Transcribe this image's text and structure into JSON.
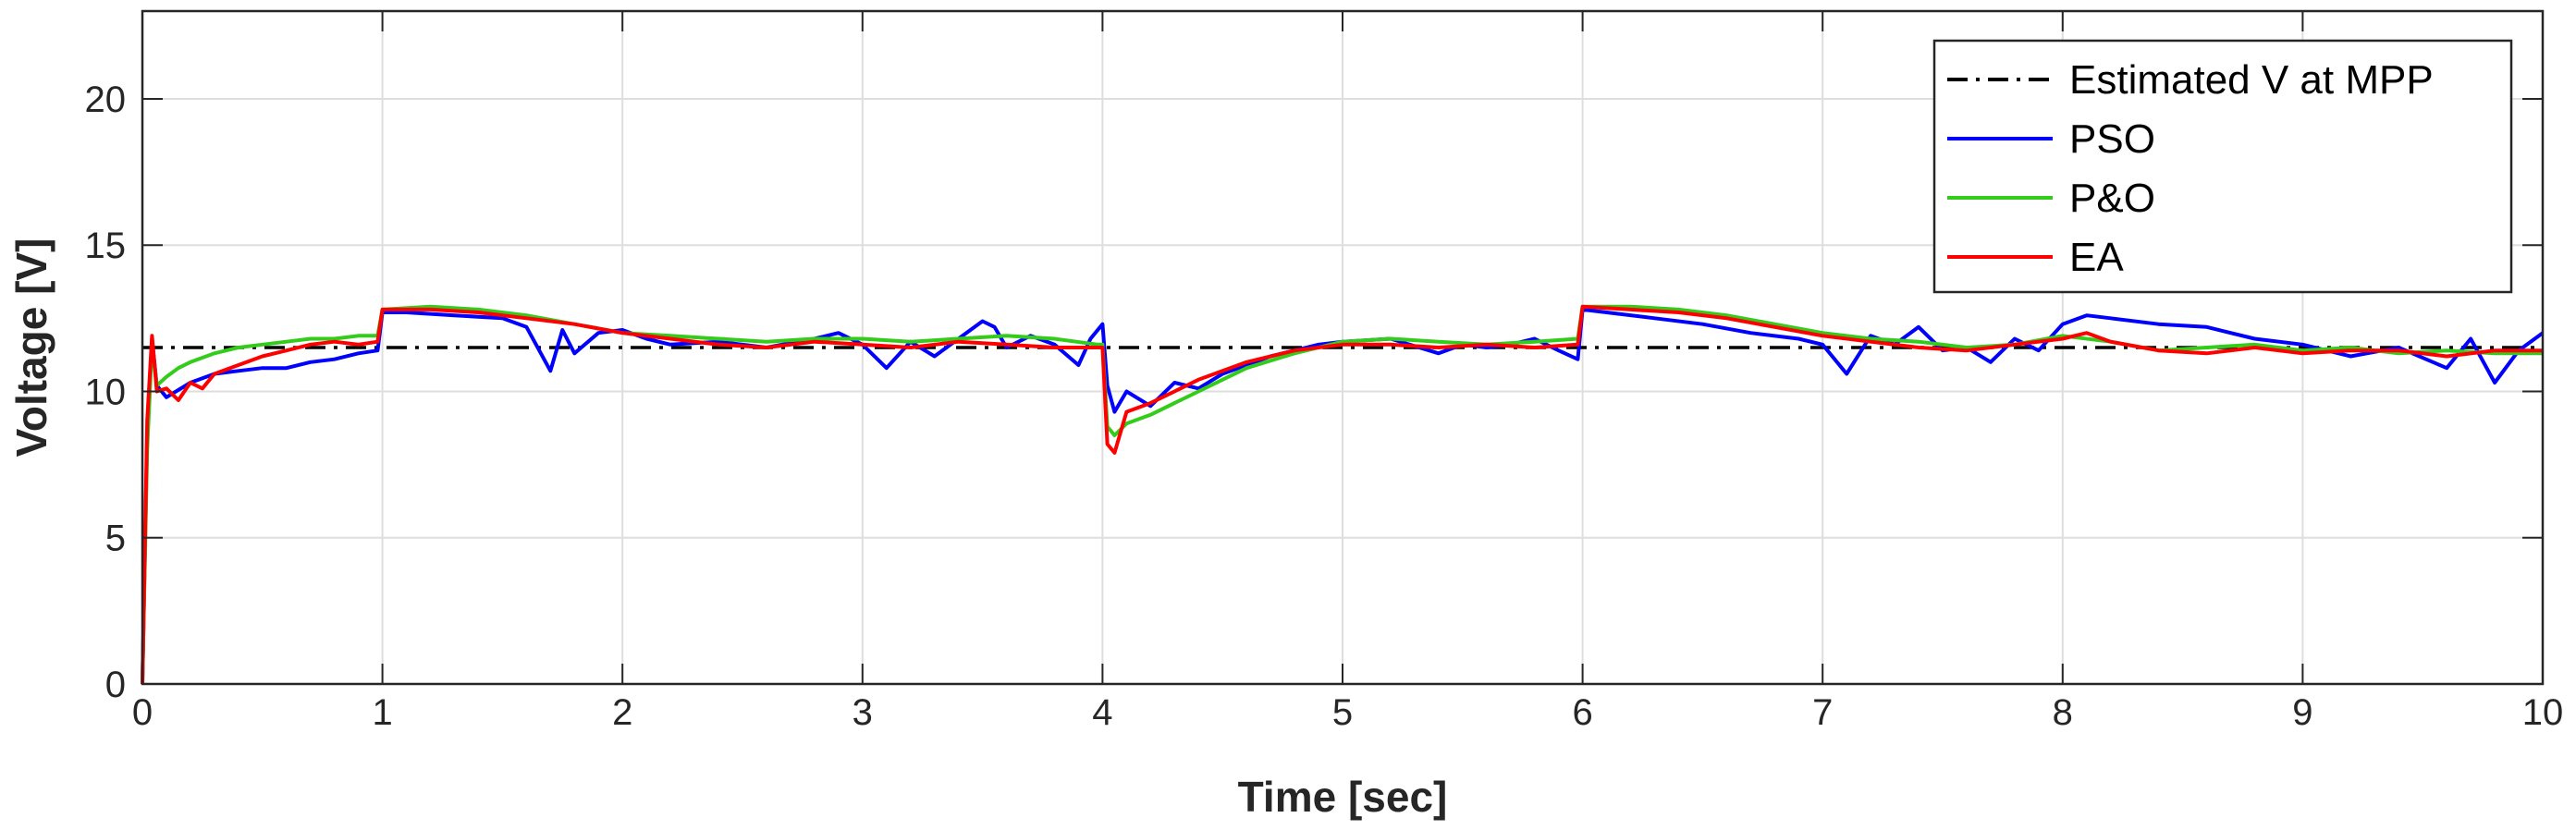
{
  "chart_data": {
    "type": "line",
    "xlabel": "Time [sec]",
    "ylabel": "Voltage [V]",
    "xlim": [
      0,
      10
    ],
    "ylim": [
      0,
      23
    ],
    "xticks": [
      0,
      1,
      2,
      3,
      4,
      5,
      6,
      7,
      8,
      9,
      10
    ],
    "yticks": [
      0,
      5,
      10,
      15,
      20
    ],
    "xtick_labels": [
      "0",
      "1",
      "2",
      "3",
      "4",
      "5",
      "6",
      "7",
      "8",
      "9",
      "10"
    ],
    "ytick_labels": [
      "0",
      "5",
      "10",
      "15",
      "20"
    ],
    "grid": true,
    "legend_position": "top-right",
    "series": [
      {
        "name": "Estimated V at MPP",
        "color": "#000000",
        "style": "dashdot",
        "x": [
          0,
          10
        ],
        "y": [
          11.5,
          11.5
        ]
      },
      {
        "name": "PSO",
        "color": "#0000ff",
        "style": "solid",
        "x": [
          0,
          0.02,
          0.04,
          0.06,
          0.1,
          0.2,
          0.3,
          0.4,
          0.5,
          0.6,
          0.7,
          0.8,
          0.9,
          0.98,
          1.0,
          1.1,
          1.3,
          1.5,
          1.6,
          1.7,
          1.75,
          1.8,
          1.9,
          2.0,
          2.1,
          2.2,
          2.4,
          2.6,
          2.8,
          2.9,
          3.0,
          3.1,
          3.2,
          3.3,
          3.4,
          3.5,
          3.55,
          3.6,
          3.7,
          3.8,
          3.9,
          3.95,
          4.0,
          4.02,
          4.05,
          4.1,
          4.2,
          4.3,
          4.4,
          4.5,
          4.6,
          4.7,
          4.8,
          4.9,
          5.0,
          5.2,
          5.4,
          5.5,
          5.6,
          5.7,
          5.8,
          5.9,
          5.98,
          6.0,
          6.1,
          6.3,
          6.5,
          6.7,
          6.9,
          7.0,
          7.1,
          7.2,
          7.3,
          7.4,
          7.5,
          7.6,
          7.7,
          7.8,
          7.9,
          8.0,
          8.1,
          8.2,
          8.4,
          8.6,
          8.8,
          9.0,
          9.2,
          9.4,
          9.6,
          9.7,
          9.8,
          9.9,
          10.0
        ],
        "y": [
          0,
          8.5,
          11.8,
          10.2,
          9.8,
          10.3,
          10.6,
          10.7,
          10.8,
          10.8,
          11.0,
          11.1,
          11.3,
          11.4,
          12.7,
          12.7,
          12.6,
          12.5,
          12.2,
          10.7,
          12.1,
          11.3,
          12.0,
          12.1,
          11.8,
          11.6,
          11.7,
          11.5,
          11.8,
          12.0,
          11.6,
          10.8,
          11.7,
          11.2,
          11.8,
          12.4,
          12.2,
          11.5,
          11.9,
          11.6,
          10.9,
          11.8,
          12.3,
          10.2,
          9.3,
          10.0,
          9.5,
          10.3,
          10.1,
          10.6,
          10.9,
          11.2,
          11.4,
          11.6,
          11.7,
          11.8,
          11.3,
          11.6,
          11.5,
          11.6,
          11.8,
          11.4,
          11.1,
          12.8,
          12.7,
          12.5,
          12.3,
          12.0,
          11.8,
          11.6,
          10.6,
          11.9,
          11.6,
          12.2,
          11.4,
          11.5,
          11.0,
          11.8,
          11.4,
          12.3,
          12.6,
          12.5,
          12.3,
          12.2,
          11.8,
          11.6,
          11.2,
          11.5,
          10.8,
          11.8,
          10.3,
          11.4,
          12.0
        ]
      },
      {
        "name": "P&O",
        "color": "#33cc1a",
        "style": "solid",
        "x": [
          0,
          0.02,
          0.04,
          0.06,
          0.1,
          0.15,
          0.2,
          0.3,
          0.4,
          0.5,
          0.6,
          0.7,
          0.8,
          0.9,
          0.98,
          1.0,
          1.2,
          1.4,
          1.6,
          1.8,
          2.0,
          2.2,
          2.4,
          2.6,
          2.8,
          3.0,
          3.2,
          3.4,
          3.6,
          3.8,
          3.98,
          4.0,
          4.02,
          4.05,
          4.1,
          4.2,
          4.3,
          4.4,
          4.5,
          4.6,
          4.8,
          5.0,
          5.2,
          5.4,
          5.6,
          5.8,
          5.98,
          6.0,
          6.2,
          6.4,
          6.6,
          6.8,
          7.0,
          7.2,
          7.4,
          7.6,
          7.8,
          8.0,
          8.2,
          8.4,
          8.6,
          8.8,
          9.0,
          9.2,
          9.4,
          9.6,
          9.8,
          10.0
        ],
        "y": [
          0,
          8.0,
          11.6,
          10.2,
          10.5,
          10.8,
          11.0,
          11.3,
          11.5,
          11.6,
          11.7,
          11.8,
          11.8,
          11.9,
          11.9,
          12.8,
          12.9,
          12.8,
          12.6,
          12.3,
          12.0,
          11.9,
          11.8,
          11.7,
          11.8,
          11.8,
          11.7,
          11.8,
          11.9,
          11.8,
          11.6,
          11.6,
          8.8,
          8.5,
          8.9,
          9.2,
          9.6,
          10.0,
          10.4,
          10.8,
          11.3,
          11.7,
          11.8,
          11.7,
          11.6,
          11.7,
          11.8,
          12.9,
          12.9,
          12.8,
          12.6,
          12.3,
          12.0,
          11.8,
          11.7,
          11.5,
          11.6,
          11.9,
          11.7,
          11.4,
          11.5,
          11.6,
          11.4,
          11.5,
          11.3,
          11.4,
          11.3,
          11.3
        ]
      },
      {
        "name": "EA",
        "color": "#ff0000",
        "style": "solid",
        "x": [
          0,
          0.02,
          0.04,
          0.06,
          0.1,
          0.15,
          0.2,
          0.25,
          0.3,
          0.4,
          0.5,
          0.6,
          0.7,
          0.8,
          0.9,
          0.98,
          1.0,
          1.2,
          1.4,
          1.6,
          1.8,
          2.0,
          2.2,
          2.4,
          2.6,
          2.8,
          3.0,
          3.2,
          3.4,
          3.6,
          3.8,
          3.98,
          4.0,
          4.02,
          4.05,
          4.1,
          4.2,
          4.3,
          4.4,
          4.5,
          4.6,
          4.8,
          5.0,
          5.2,
          5.4,
          5.6,
          5.8,
          5.98,
          6.0,
          6.2,
          6.4,
          6.6,
          6.8,
          7.0,
          7.2,
          7.4,
          7.6,
          7.8,
          8.0,
          8.1,
          8.2,
          8.4,
          8.6,
          8.8,
          9.0,
          9.2,
          9.4,
          9.6,
          9.8,
          10.0
        ],
        "y": [
          0,
          9.0,
          11.9,
          10.0,
          10.1,
          9.7,
          10.3,
          10.1,
          10.6,
          10.9,
          11.2,
          11.4,
          11.6,
          11.7,
          11.6,
          11.7,
          12.8,
          12.8,
          12.7,
          12.5,
          12.3,
          12.0,
          11.8,
          11.6,
          11.5,
          11.7,
          11.6,
          11.5,
          11.7,
          11.6,
          11.5,
          11.5,
          11.5,
          8.2,
          7.9,
          9.3,
          9.6,
          10.0,
          10.4,
          10.7,
          11.0,
          11.4,
          11.6,
          11.6,
          11.5,
          11.6,
          11.5,
          11.6,
          12.9,
          12.8,
          12.7,
          12.5,
          12.2,
          11.9,
          11.7,
          11.5,
          11.4,
          11.6,
          11.8,
          12.0,
          11.7,
          11.4,
          11.3,
          11.5,
          11.3,
          11.4,
          11.4,
          11.2,
          11.4,
          11.4
        ]
      }
    ]
  }
}
